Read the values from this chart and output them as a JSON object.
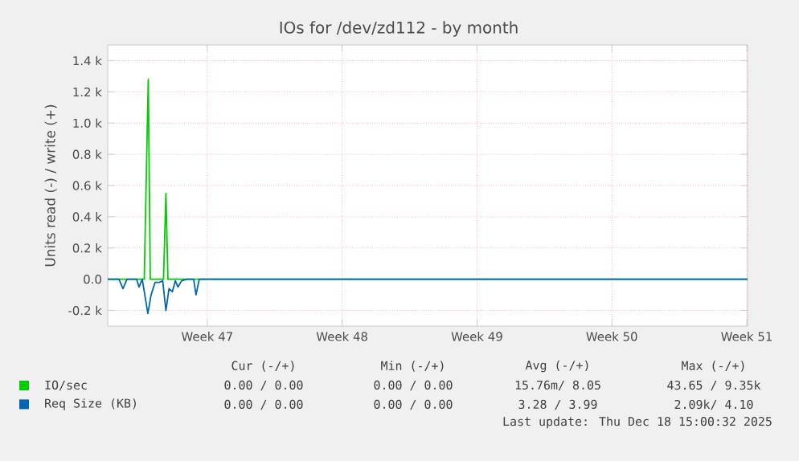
{
  "chart_data": {
    "type": "line",
    "title": "IOs for /dev/zd112 - by month",
    "ylabel": "Units read (-) / write (+)",
    "xlim": [
      "2025-11-15T08:00",
      "2025-12-18T13:00"
    ],
    "ylim": [
      -300,
      1500
    ],
    "xticks": [
      {
        "value": "2025-11-20T12:00",
        "label": "Week 47"
      },
      {
        "value": "2025-11-27T12:00",
        "label": "Week 48"
      },
      {
        "value": "2025-12-04T12:00",
        "label": "Week 49"
      },
      {
        "value": "2025-12-11T12:00",
        "label": "Week 50"
      },
      {
        "value": "2025-12-18T12:00",
        "label": "Week 51"
      }
    ],
    "yticks": [
      {
        "value": -200,
        "label": "-0.2 k"
      },
      {
        "value": 0,
        "label": "0.0"
      },
      {
        "value": 200,
        "label": "0.2 k"
      },
      {
        "value": 400,
        "label": "0.4 k"
      },
      {
        "value": 600,
        "label": "0.6 k"
      },
      {
        "value": 800,
        "label": "0.8 k"
      },
      {
        "value": 1000,
        "label": "1.0 k"
      },
      {
        "value": 1200,
        "label": "1.2 k"
      },
      {
        "value": 1400,
        "label": "1.4 k"
      }
    ],
    "grid": true,
    "legend": "bottom left",
    "series": [
      {
        "name": "IO/sec",
        "color": "#00cc00",
        "x": [
          "2025-11-15T08:00",
          "2025-11-17T05:30",
          "2025-11-17T10:30",
          "2025-11-17T13:00",
          "2025-11-18T05:30",
          "2025-11-18T08:30",
          "2025-11-18T11:00",
          "2025-12-18T13:00"
        ],
        "values": [
          0,
          0,
          1280,
          0,
          0,
          550,
          0,
          0
        ]
      },
      {
        "name": "Req Size (KB)",
        "color": "#0066b3",
        "x": [
          "2025-11-15T08:00",
          "2025-11-15T22:00",
          "2025-11-16T03:00",
          "2025-11-16T08:00",
          "2025-11-16T20:00",
          "2025-11-16T23:00",
          "2025-11-17T03:00",
          "2025-11-17T10:00",
          "2025-11-17T14:00",
          "2025-11-17T19:00",
          "2025-11-18T00:30",
          "2025-11-18T04:30",
          "2025-11-18T08:30",
          "2025-11-18T12:20",
          "2025-11-18T16:30",
          "2025-11-18T20:15",
          "2025-11-18T23:30",
          "2025-11-19T04:00",
          "2025-11-19T10:30",
          "2025-11-19T19:00",
          "2025-11-19T22:00",
          "2025-11-20T02:00",
          "2025-12-18T13:00"
        ],
        "values": [
          0,
          0,
          -60,
          0,
          0,
          -50,
          0,
          -220,
          -100,
          -20,
          -20,
          -10,
          -200,
          -60,
          -80,
          -10,
          -50,
          -10,
          0,
          0,
          -100,
          0,
          0
        ]
      }
    ],
    "annotations": [
      "Cur (-/+)",
      "Min (-/+)",
      "Avg (-/+)",
      "Max (-/+)",
      "0.00 / 0.00",
      "0.00 / 0.00",
      "15.76m/ 8.05",
      "43.65 / 9.35k",
      "0.00 / 0.00",
      "0.00 / 0.00",
      "3.28 / 3.99",
      "2.09k/ 4.10",
      "Last update: Thu Dec 18 15:00:32 2025"
    ]
  }
}
